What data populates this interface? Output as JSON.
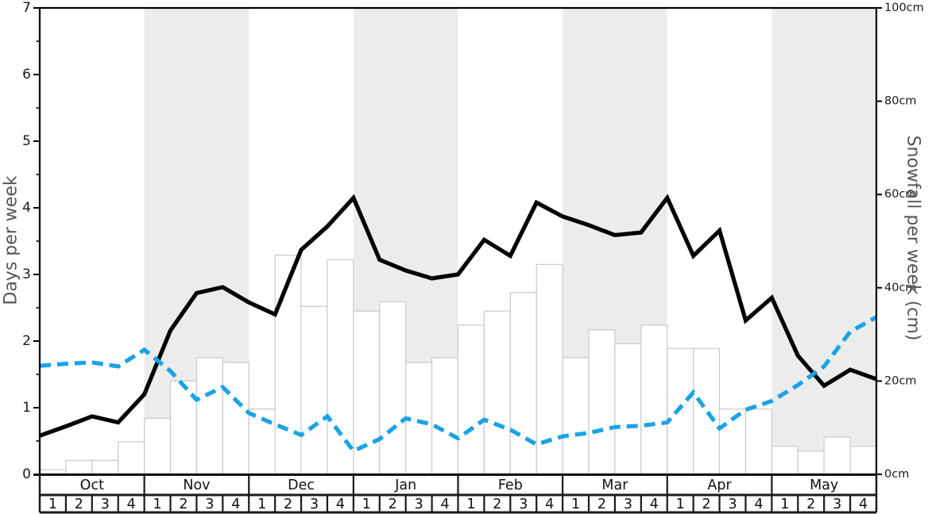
{
  "page": {
    "background": "#ffffff"
  },
  "chart_data": {
    "type": "combo",
    "title": "",
    "months": [
      "Oct",
      "Nov",
      "Dec",
      "Jan",
      "Feb",
      "Mar",
      "Apr",
      "May"
    ],
    "weeks_per_month": 4,
    "week_labels": [
      "1",
      "2",
      "3",
      "4"
    ],
    "shaded_month_indices": [
      1,
      3,
      5,
      7
    ],
    "grid": "none",
    "legend_position": "none",
    "left_axis": {
      "label": "Days per week",
      "min": 0,
      "max": 7,
      "tick_labels": [
        "0",
        "1",
        "2",
        "3",
        "4",
        "5",
        "6",
        "7"
      ],
      "minor_tick_step": 0.5
    },
    "right_axis": {
      "label": "Snowfall per week (cm)",
      "min": 0,
      "max": 100,
      "tick_labels": [
        "0cm",
        "20cm",
        "40cm",
        "60cm",
        "80cm",
        "100cm"
      ]
    },
    "series": [
      {
        "name": "snowfall-bars",
        "type": "bar",
        "axis": "right",
        "unit": "cm",
        "x_mode": "week-cells",
        "values": [
          1,
          3,
          3,
          7,
          12,
          20,
          25,
          24,
          14,
          47,
          36,
          46,
          35,
          37,
          24,
          25,
          32,
          35,
          39,
          45,
          25,
          31,
          28,
          32,
          27,
          27,
          14,
          14,
          6,
          5,
          8,
          6
        ]
      },
      {
        "name": "solid-black-line",
        "type": "line",
        "style": "solid",
        "axis": "left",
        "unit": "days",
        "x_mode": "week-boundaries",
        "values": [
          0.58,
          0.72,
          0.87,
          0.78,
          1.2,
          2.16,
          2.72,
          2.81,
          2.58,
          2.4,
          3.37,
          3.72,
          4.15,
          3.22,
          3.06,
          2.94,
          3.0,
          3.52,
          3.28,
          4.08,
          3.87,
          3.74,
          3.59,
          3.63,
          4.15,
          3.28,
          3.66,
          2.31,
          2.65,
          1.78,
          1.33,
          1.57,
          1.43
        ]
      },
      {
        "name": "dashed-blue-line",
        "type": "line",
        "style": "dashed",
        "axis": "left",
        "unit": "days",
        "x_mode": "week-boundaries",
        "values": [
          1.63,
          1.66,
          1.68,
          1.62,
          1.87,
          1.55,
          1.12,
          1.31,
          0.92,
          0.75,
          0.59,
          0.87,
          0.35,
          0.53,
          0.84,
          0.75,
          0.54,
          0.82,
          0.67,
          0.45,
          0.57,
          0.62,
          0.71,
          0.73,
          0.78,
          1.23,
          0.69,
          0.97,
          1.1,
          1.34,
          1.62,
          2.14,
          2.36
        ]
      }
    ],
    "colors": {
      "bar_fill": "#ffffff",
      "bar_stroke": "#c9c9c9",
      "black_line": "#000000",
      "blue_line": "#19a3e6",
      "month_shading": "#ececec",
      "axis_title": "#555555",
      "tick_label": "#1a1a1a",
      "table_border": "#1a1a1a"
    }
  }
}
